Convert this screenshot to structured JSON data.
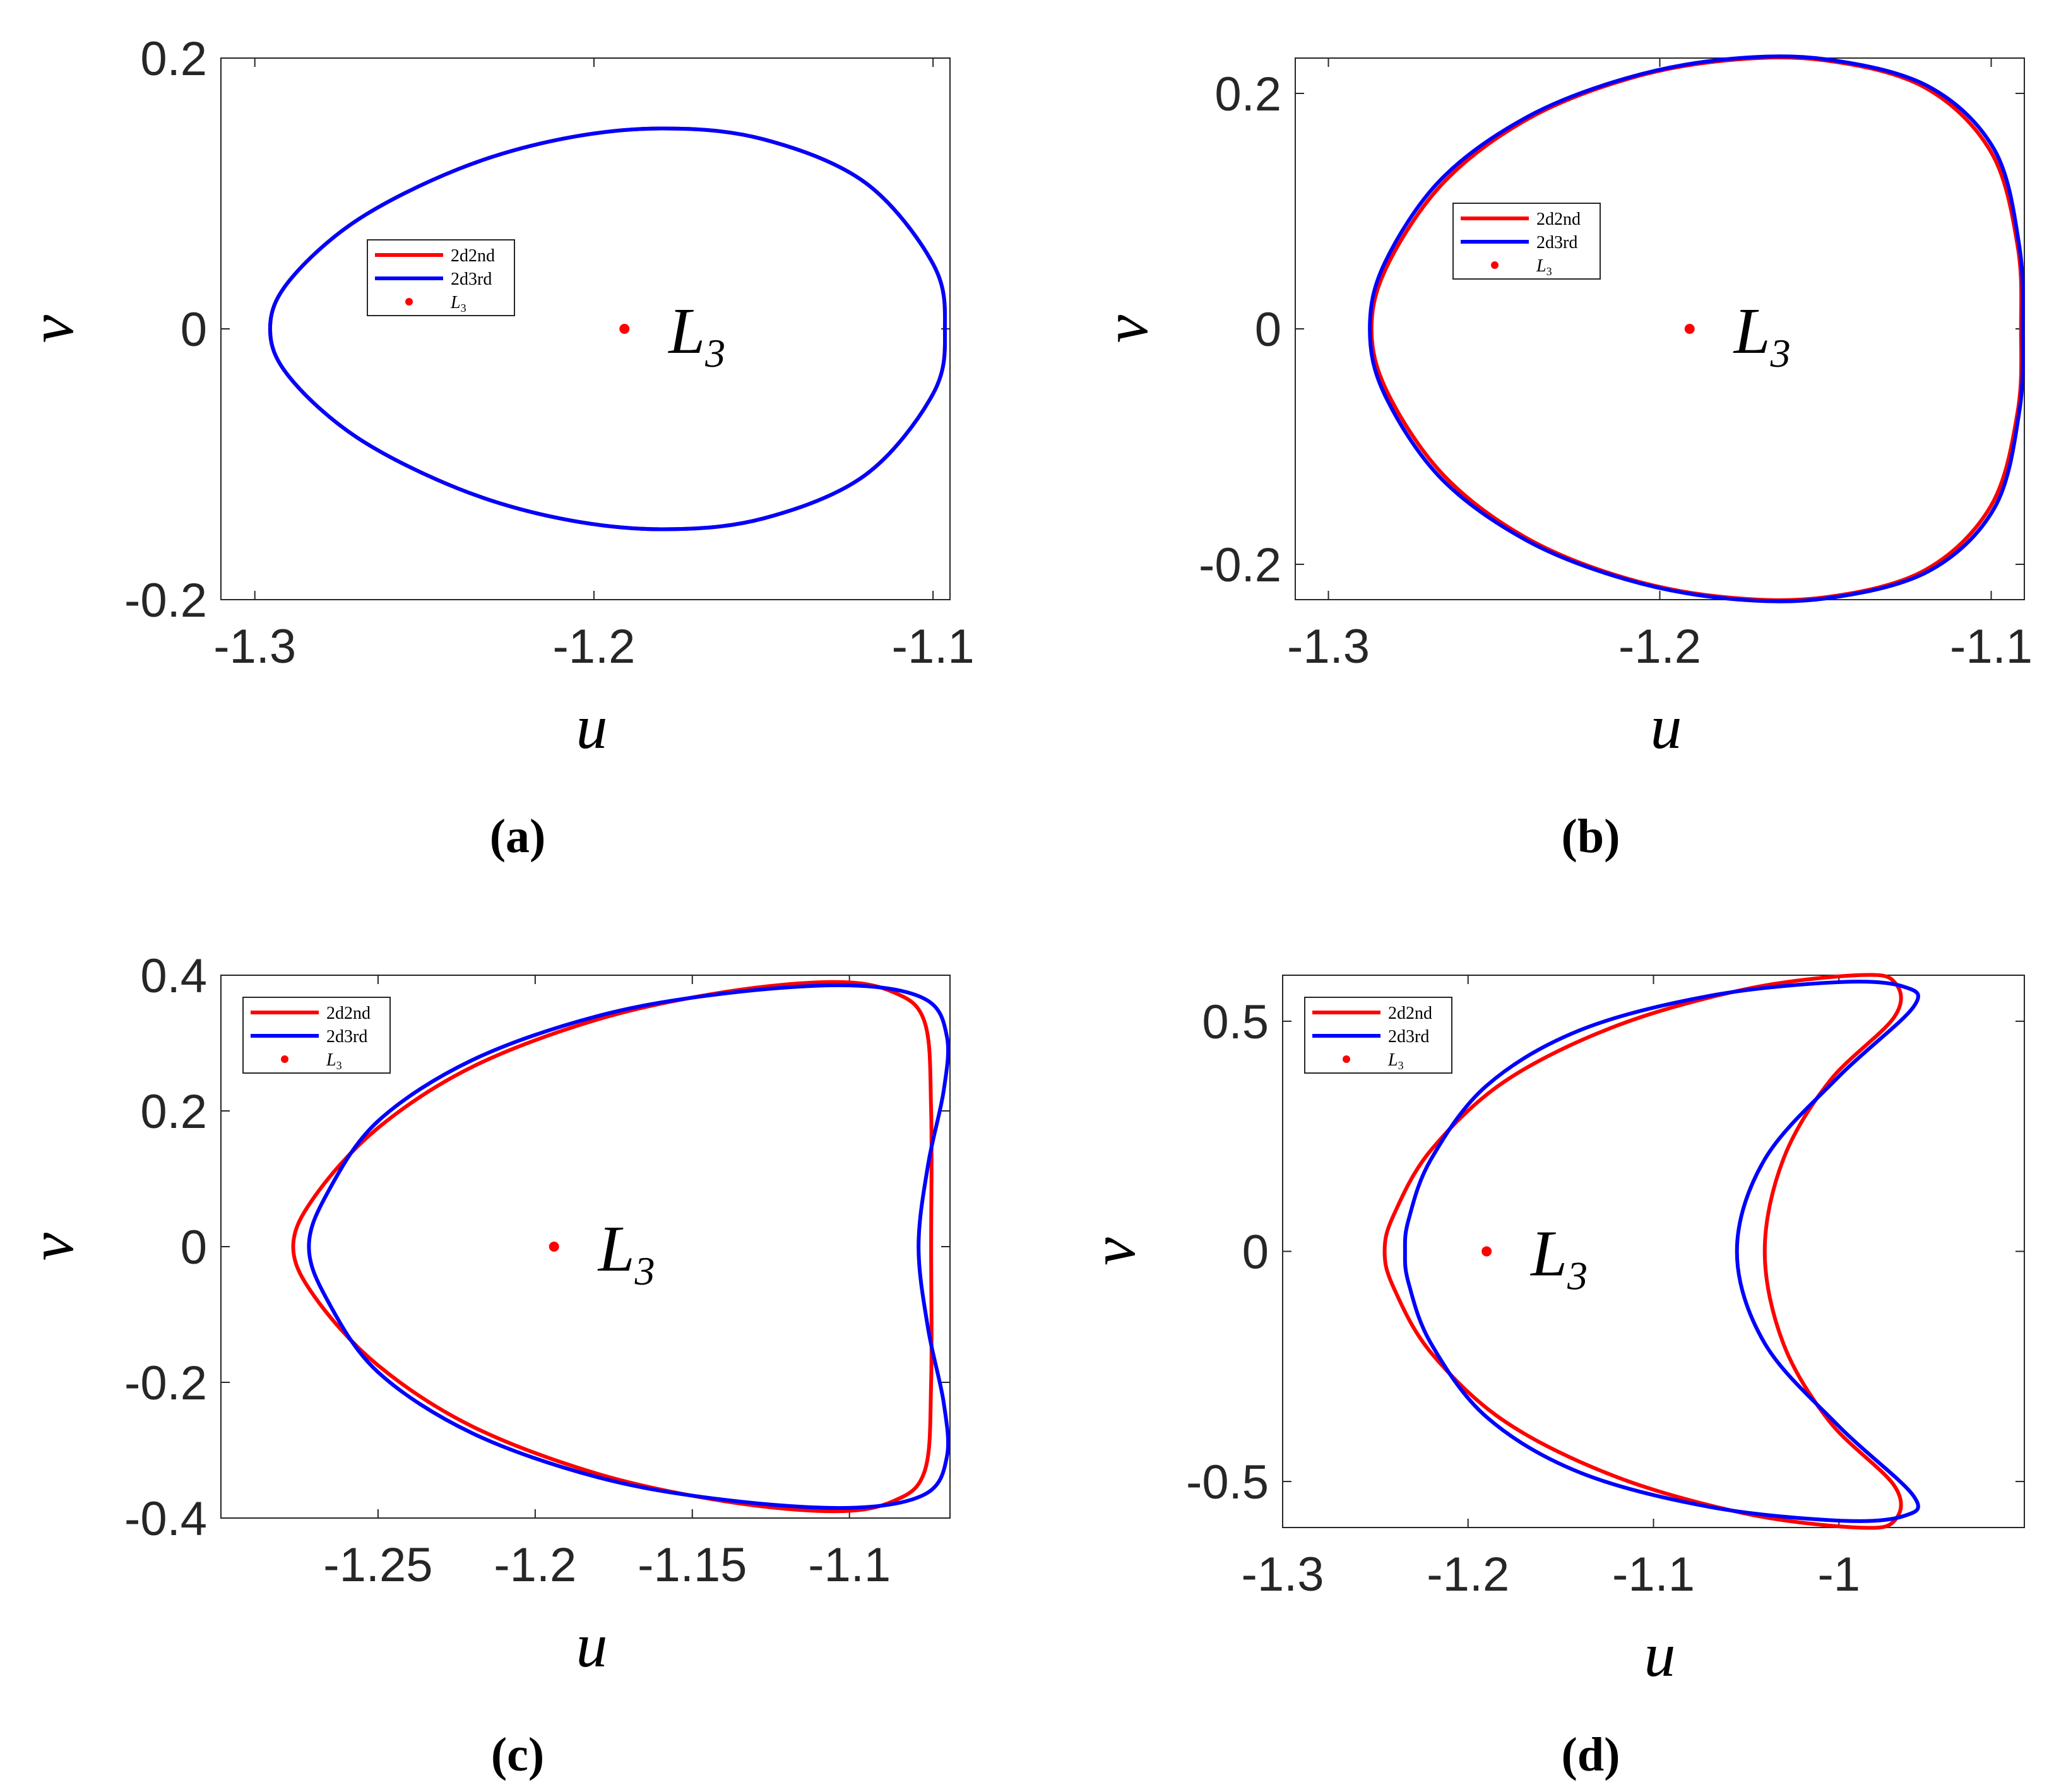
{
  "figure": {
    "panels": [
      {
        "caption": "(a)",
        "xlabel": "u",
        "ylabel": "v",
        "xticks": [
          "-1.3",
          "-1.2",
          "-1.1"
        ],
        "yticks": [
          "-0.2",
          "0",
          "0.2"
        ],
        "legend": [
          "2d2nd",
          "2d3rd",
          "L3"
        ],
        "point_label": "L",
        "point_sub": "3"
      },
      {
        "caption": "(b)",
        "xlabel": "u",
        "ylabel": "v",
        "xticks": [
          "-1.3",
          "-1.2",
          "-1.1"
        ],
        "yticks": [
          "-0.2",
          "0",
          "0.2"
        ],
        "legend": [
          "2d2nd",
          "2d3rd",
          "L3"
        ],
        "point_label": "L",
        "point_sub": "3"
      },
      {
        "caption": "(c)",
        "xlabel": "u",
        "ylabel": "v",
        "xticks": [
          "-1.25",
          "-1.2",
          "-1.15",
          "-1.1"
        ],
        "yticks": [
          "-0.4",
          "-0.2",
          "0",
          "0.2",
          "0.4"
        ],
        "legend": [
          "2d2nd",
          "2d3rd",
          "L3"
        ],
        "point_label": "L",
        "point_sub": "3"
      },
      {
        "caption": "(d)",
        "xlabel": "u",
        "ylabel": "v",
        "xticks": [
          "-1.3",
          "-1.2",
          "-1.1",
          "-1"
        ],
        "yticks": [
          "-0.5",
          "0",
          "0.5"
        ],
        "legend": [
          "2d2nd",
          "2d3rd",
          "L3"
        ],
        "point_label": "L",
        "point_sub": "3"
      }
    ]
  },
  "colors": {
    "series_2d2nd": "#ff0000",
    "series_2d3rd": "#0000ff",
    "point": "#ff0000"
  },
  "chart_data": [
    {
      "type": "line",
      "xlabel": "u",
      "ylabel": "v",
      "xlim": [
        -1.31,
        -1.095
      ],
      "ylim": [
        -0.2,
        0.2
      ],
      "xticks": [
        -1.3,
        -1.2,
        -1.1
      ],
      "yticks": [
        -0.2,
        0,
        0.2
      ],
      "grid": false,
      "legend_position": "upper-left",
      "series": [
        {
          "name": "2d2nd",
          "kind": "closed-curve",
          "points": [
            [
              -1.0965,
              0
            ],
            [
              -1.1,
              0.048
            ],
            [
              -1.12,
              0.108
            ],
            [
              -1.15,
              0.14
            ],
            [
              -1.18,
              0.148
            ],
            [
              -1.21,
              0.14
            ],
            [
              -1.24,
              0.118
            ],
            [
              -1.27,
              0.08
            ],
            [
              -1.29,
              0.035
            ],
            [
              -1.2955,
              0
            ],
            [
              -1.29,
              -0.035
            ],
            [
              -1.27,
              -0.08
            ],
            [
              -1.24,
              -0.118
            ],
            [
              -1.21,
              -0.14
            ],
            [
              -1.18,
              -0.148
            ],
            [
              -1.15,
              -0.14
            ],
            [
              -1.12,
              -0.108
            ],
            [
              -1.1,
              -0.048
            ]
          ]
        },
        {
          "name": "2d3rd",
          "kind": "closed-curve",
          "points": [
            [
              -1.0965,
              0
            ],
            [
              -1.1,
              0.048
            ],
            [
              -1.12,
              0.108
            ],
            [
              -1.15,
              0.14
            ],
            [
              -1.18,
              0.148
            ],
            [
              -1.21,
              0.14
            ],
            [
              -1.24,
              0.118
            ],
            [
              -1.27,
              0.08
            ],
            [
              -1.29,
              0.035
            ],
            [
              -1.2955,
              0
            ],
            [
              -1.29,
              -0.035
            ],
            [
              -1.27,
              -0.08
            ],
            [
              -1.24,
              -0.118
            ],
            [
              -1.21,
              -0.14
            ],
            [
              -1.18,
              -0.148
            ],
            [
              -1.15,
              -0.14
            ],
            [
              -1.12,
              -0.108
            ],
            [
              -1.1,
              -0.048
            ]
          ]
        }
      ],
      "points": [
        {
          "name": "L3",
          "x": -1.191,
          "y": 0
        }
      ]
    },
    {
      "type": "line",
      "xlabel": "u",
      "ylabel": "v",
      "xlim": [
        -1.31,
        -1.09
      ],
      "ylim": [
        -0.23,
        0.23
      ],
      "xticks": [
        -1.3,
        -1.2,
        -1.1
      ],
      "yticks": [
        -0.2,
        0,
        0.2
      ],
      "grid": false,
      "legend_position": "upper-left",
      "series": [
        {
          "name": "2d2nd",
          "kind": "closed-curve",
          "points": [
            [
              -1.091,
              0
            ],
            [
              -1.092,
              0.07
            ],
            [
              -1.1,
              0.15
            ],
            [
              -1.12,
              0.205
            ],
            [
              -1.15,
              0.228
            ],
            [
              -1.18,
              0.228
            ],
            [
              -1.21,
              0.212
            ],
            [
              -1.24,
              0.178
            ],
            [
              -1.265,
              0.125
            ],
            [
              -1.282,
              0.055
            ],
            [
              -1.287,
              0
            ],
            [
              -1.282,
              -0.055
            ],
            [
              -1.265,
              -0.125
            ],
            [
              -1.24,
              -0.178
            ],
            [
              -1.21,
              -0.212
            ],
            [
              -1.18,
              -0.228
            ],
            [
              -1.15,
              -0.228
            ],
            [
              -1.12,
              -0.205
            ],
            [
              -1.1,
              -0.15
            ],
            [
              -1.092,
              -0.07
            ]
          ]
        },
        {
          "name": "2d3rd",
          "kind": "closed-curve",
          "points": [
            [
              -1.0905,
              0
            ],
            [
              -1.0915,
              0.07
            ],
            [
              -1.099,
              0.152
            ],
            [
              -1.119,
              0.206
            ],
            [
              -1.15,
              0.229
            ],
            [
              -1.18,
              0.229
            ],
            [
              -1.21,
              0.213
            ],
            [
              -1.24,
              0.18
            ],
            [
              -1.266,
              0.127
            ],
            [
              -1.283,
              0.056
            ],
            [
              -1.2875,
              0
            ],
            [
              -1.283,
              -0.056
            ],
            [
              -1.266,
              -0.127
            ],
            [
              -1.24,
              -0.18
            ],
            [
              -1.21,
              -0.213
            ],
            [
              -1.18,
              -0.229
            ],
            [
              -1.15,
              -0.229
            ],
            [
              -1.119,
              -0.206
            ],
            [
              -1.099,
              -0.152
            ],
            [
              -1.0915,
              -0.07
            ]
          ]
        }
      ],
      "points": [
        {
          "name": "L3",
          "x": -1.191,
          "y": 0
        }
      ]
    },
    {
      "type": "line",
      "xlabel": "u",
      "ylabel": "v",
      "xlim": [
        -1.3,
        -1.068
      ],
      "ylim": [
        -0.4,
        0.4
      ],
      "xticks": [
        -1.25,
        -1.2,
        -1.15,
        -1.1
      ],
      "yticks": [
        -0.4,
        -0.2,
        0,
        0.2,
        0.4
      ],
      "grid": false,
      "legend_position": "upper-left",
      "series": [
        {
          "name": "2d2nd",
          "kind": "closed-curve",
          "points": [
            [
              -1.074,
              0
            ],
            [
              -1.074,
              0.2
            ],
            [
              -1.076,
              0.33
            ],
            [
              -1.086,
              0.375
            ],
            [
              -1.105,
              0.39
            ],
            [
              -1.14,
              0.375
            ],
            [
              -1.18,
              0.335
            ],
            [
              -1.22,
              0.265
            ],
            [
              -1.25,
              0.175
            ],
            [
              -1.27,
              0.075
            ],
            [
              -1.277,
              0
            ],
            [
              -1.27,
              -0.075
            ],
            [
              -1.25,
              -0.175
            ],
            [
              -1.22,
              -0.265
            ],
            [
              -1.18,
              -0.335
            ],
            [
              -1.14,
              -0.375
            ],
            [
              -1.105,
              -0.39
            ],
            [
              -1.086,
              -0.375
            ],
            [
              -1.076,
              -0.33
            ],
            [
              -1.074,
              -0.2
            ]
          ]
        },
        {
          "name": "2d3rd",
          "kind": "closed-curve",
          "points": [
            [
              -1.078,
              0
            ],
            [
              -1.075,
              0.12
            ],
            [
              -1.07,
              0.23
            ],
            [
              -1.069,
              0.31
            ],
            [
              -1.076,
              0.365
            ],
            [
              -1.1,
              0.385
            ],
            [
              -1.14,
              0.373
            ],
            [
              -1.18,
              0.34
            ],
            [
              -1.22,
              0.275
            ],
            [
              -1.25,
              0.185
            ],
            [
              -1.266,
              0.08
            ],
            [
              -1.272,
              0
            ],
            [
              -1.266,
              -0.08
            ],
            [
              -1.25,
              -0.185
            ],
            [
              -1.22,
              -0.275
            ],
            [
              -1.18,
              -0.34
            ],
            [
              -1.14,
              -0.373
            ],
            [
              -1.1,
              -0.385
            ],
            [
              -1.076,
              -0.365
            ],
            [
              -1.069,
              -0.31
            ],
            [
              -1.07,
              -0.23
            ],
            [
              -1.075,
              -0.12
            ]
          ]
        }
      ],
      "points": [
        {
          "name": "L3",
          "x": -1.194,
          "y": 0
        }
      ]
    },
    {
      "type": "line",
      "xlabel": "u",
      "ylabel": "v",
      "xlim": [
        -1.3,
        -0.9
      ],
      "ylim": [
        -0.6,
        0.6
      ],
      "xticks": [
        -1.3,
        -1.2,
        -1.1,
        -1
      ],
      "yticks": [
        -0.5,
        0,
        0.5
      ],
      "grid": false,
      "legend_position": "upper-left",
      "series": [
        {
          "name": "2d2nd",
          "kind": "closed-curve",
          "points": [
            [
              -1.04,
              0
            ],
            [
              -1.03,
              0.2
            ],
            [
              -1.005,
              0.37
            ],
            [
              -0.97,
              0.51
            ],
            [
              -0.97,
              0.585
            ],
            [
              -0.99,
              0.6
            ],
            [
              -1.05,
              0.57
            ],
            [
              -1.12,
              0.49
            ],
            [
              -1.18,
              0.37
            ],
            [
              -1.22,
              0.22
            ],
            [
              -1.24,
              0.08
            ],
            [
              -1.245,
              0
            ],
            [
              -1.24,
              -0.08
            ],
            [
              -1.22,
              -0.22
            ],
            [
              -1.18,
              -0.37
            ],
            [
              -1.12,
              -0.49
            ],
            [
              -1.05,
              -0.57
            ],
            [
              -0.99,
              -0.6
            ],
            [
              -0.97,
              -0.585
            ],
            [
              -0.97,
              -0.51
            ],
            [
              -1.005,
              -0.37
            ],
            [
              -1.03,
              -0.2
            ]
          ]
        },
        {
          "name": "2d3rd",
          "kind": "closed-curve",
          "points": [
            [
              -1.055,
              0
            ],
            [
              -1.04,
              0.2
            ],
            [
              -1.0,
              0.38
            ],
            [
              -0.96,
              0.53
            ],
            [
              -0.965,
              0.575
            ],
            [
              -1.0,
              0.585
            ],
            [
              -1.07,
              0.555
            ],
            [
              -1.14,
              0.48
            ],
            [
              -1.19,
              0.36
            ],
            [
              -1.22,
              0.2
            ],
            [
              -1.232,
              0.07
            ],
            [
              -1.234,
              0
            ],
            [
              -1.232,
              -0.07
            ],
            [
              -1.22,
              -0.2
            ],
            [
              -1.19,
              -0.36
            ],
            [
              -1.14,
              -0.48
            ],
            [
              -1.07,
              -0.555
            ],
            [
              -1.0,
              -0.585
            ],
            [
              -0.965,
              -0.575
            ],
            [
              -0.96,
              -0.53
            ],
            [
              -1.0,
              -0.38
            ],
            [
              -1.04,
              -0.2
            ]
          ]
        }
      ],
      "points": [
        {
          "name": "L3",
          "x": -1.19,
          "y": 0
        }
      ]
    }
  ]
}
